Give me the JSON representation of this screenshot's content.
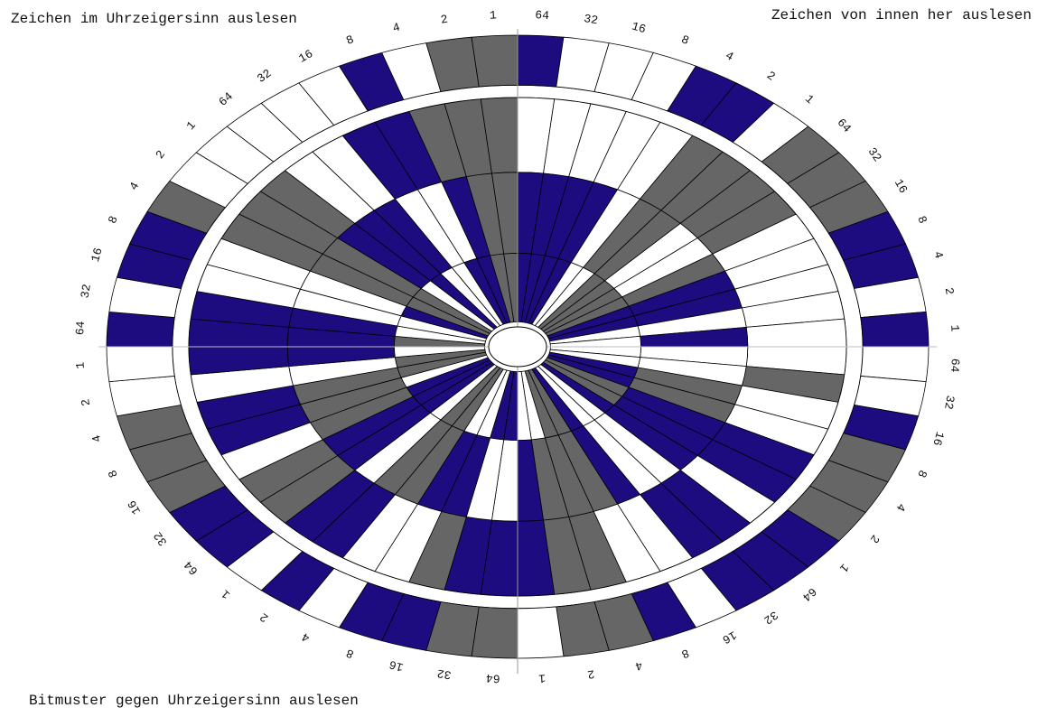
{
  "header": {
    "top_left": "Zeichen im Uhrzeigersinn auslesen",
    "top_right": "Zeichen von innen her auslesen",
    "bottom_left": "Bitmuster gegen Uhrzeigersinn auslesen"
  },
  "bit_labels": [
    "64",
    "32",
    "16",
    "8",
    "4",
    "2",
    "1"
  ],
  "colors": {
    "b": "#1c0c80",
    "g": "#666666",
    "w": "#ffffff"
  },
  "rings": [
    [
      "bwwwbbw",
      "gggbbwb",
      "wwbgggb",
      "bbwbggw",
      "ggbbwbw",
      "bbgggww",
      "bwbbgww",
      "wwwbwgg"
    ],
    [
      "wwwwwgg",
      "ggwwwww",
      "wgwwbbw",
      "bbwwggb",
      "bbgwwbb",
      "ggwbbwb",
      "bbwwggg",
      "wwbbggg"
    ],
    [
      "bbbbwgg",
      "wwgbbwb",
      "wwggbbb",
      "wwbgggb",
      "wwbbggw",
      "bbgggwb",
      "bbwwggb",
      "bbwwbgg"
    ],
    [
      "bbbbwwg",
      "gggbbww",
      "wwbbggb",
      "wwbggww",
      "bbwwggw",
      "bbbwggw",
      "gwwbggw",
      "bwwbbgg"
    ]
  ]
}
